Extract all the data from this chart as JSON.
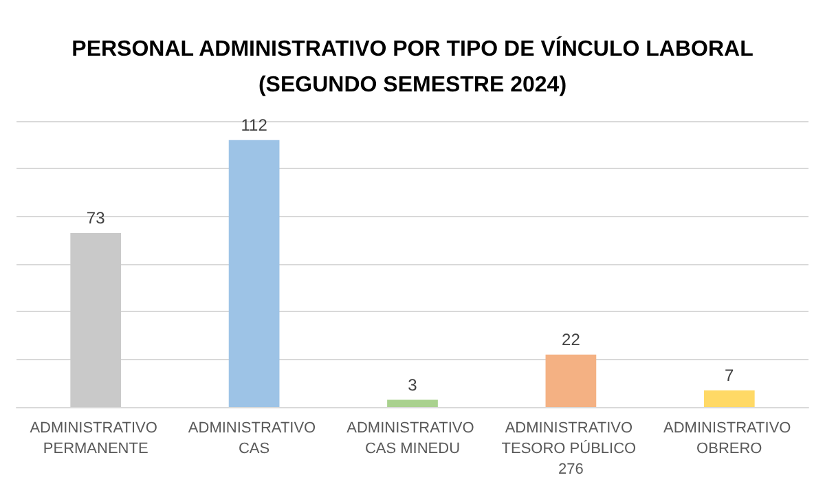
{
  "chart_data": {
    "type": "bar",
    "title": "PERSONAL ADMINISTRATIVO POR TIPO DE VÍNCULO LABORAL\n(SEGUNDO SEMESTRE 2024)",
    "categories": [
      "ADMINISTRATIVO PERMANENTE",
      "ADMINISTRATIVO CAS",
      "ADMINISTRATIVO CAS MINEDU",
      "ADMINISTRATIVO TESORO PÚBLICO 276",
      "ADMINISTRATIVO OBRERO"
    ],
    "values": [
      73,
      112,
      3,
      22,
      7
    ],
    "colors": [
      "#c9c9c9",
      "#9dc3e6",
      "#a9d18e",
      "#f4b183",
      "#ffd966"
    ],
    "data_labels": true,
    "ylim": [
      0,
      120
    ],
    "yticks": [
      0,
      20,
      40,
      60,
      80,
      100,
      120
    ],
    "grid": "y",
    "tick_labels": "x"
  }
}
